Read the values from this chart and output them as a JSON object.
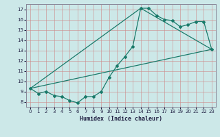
{
  "xlabel": "Humidex (Indice chaleur)",
  "xlim": [
    -0.5,
    23.5
  ],
  "ylim": [
    7.5,
    17.5
  ],
  "xticks": [
    0,
    1,
    2,
    3,
    4,
    5,
    6,
    7,
    8,
    9,
    10,
    11,
    12,
    13,
    14,
    15,
    16,
    17,
    18,
    19,
    20,
    21,
    22,
    23
  ],
  "yticks": [
    8,
    9,
    10,
    11,
    12,
    13,
    14,
    15,
    16,
    17
  ],
  "bg_color": "#cce8e8",
  "grid_color": "#cc8888",
  "line_color": "#1a7a6a",
  "line1_x": [
    0,
    1,
    2,
    3,
    4,
    5,
    6,
    7,
    8,
    9,
    10,
    11,
    12,
    13,
    14,
    15,
    16,
    17,
    18,
    19,
    20,
    21,
    22,
    23
  ],
  "line1_y": [
    9.3,
    8.8,
    9.0,
    8.6,
    8.5,
    8.1,
    7.9,
    8.5,
    8.5,
    9.0,
    10.4,
    11.5,
    12.4,
    13.4,
    17.1,
    17.1,
    16.4,
    16.0,
    15.9,
    15.3,
    15.5,
    15.8,
    15.8,
    13.1
  ],
  "line2_x": [
    0,
    23
  ],
  "line2_y": [
    9.3,
    13.1
  ],
  "line3_x": [
    0,
    14,
    23
  ],
  "line3_y": [
    9.3,
    17.1,
    13.1
  ]
}
